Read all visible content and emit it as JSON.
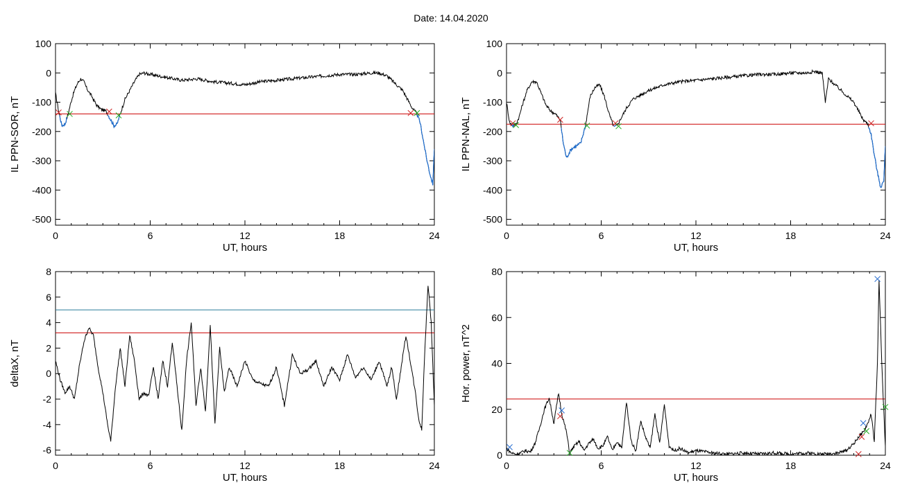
{
  "header": {
    "title": "Date:  14.04.2020"
  },
  "colors": {
    "curve": "#000000",
    "threshold_red": "#cc0000",
    "threshold_teal": "#2a7f9a",
    "active": "#1f6fd1",
    "mark_red": "#cc2222",
    "mark_green": "#22aa22",
    "mark_blue": "#2a6fd1"
  },
  "chart_data": [
    {
      "id": "ppn-sor",
      "type": "line",
      "title": "",
      "xlabel": "UT, hours",
      "ylabel": "IL PPN-SOR, nT",
      "xlim": [
        0,
        24
      ],
      "ylim": [
        -520,
        100
      ],
      "xticks": [
        0,
        6,
        12,
        18,
        24
      ],
      "yticks": [
        100,
        0,
        -100,
        -200,
        -300,
        -400,
        -500
      ],
      "threshold": -140,
      "series": [
        {
          "x": [
            0,
            0.2,
            0.4,
            0.6,
            0.8,
            1.0,
            1.2,
            1.4,
            1.6,
            1.8,
            2.0,
            2.3,
            2.6,
            2.9,
            3.2,
            3.5,
            3.7,
            3.9,
            4.1,
            4.4,
            4.7,
            5.0,
            5.3,
            5.6,
            6,
            7,
            8,
            9,
            10,
            11,
            12,
            13,
            14,
            15,
            16,
            17,
            18,
            19,
            20,
            20.5,
            21,
            21.5,
            22,
            22.3,
            22.6,
            22.9,
            23.1,
            23.3,
            23.5,
            23.7,
            23.9,
            24
          ],
          "y": [
            -70,
            -130,
            -180,
            -175,
            -140,
            -95,
            -60,
            -35,
            -20,
            -30,
            -55,
            -80,
            -110,
            -125,
            -130,
            -160,
            -180,
            -175,
            -140,
            -90,
            -60,
            -30,
            -5,
            0,
            -5,
            -15,
            -25,
            -20,
            -30,
            -35,
            -40,
            -30,
            -25,
            -20,
            -15,
            -10,
            -5,
            -5,
            0,
            0,
            -10,
            -35,
            -60,
            -90,
            -120,
            -140,
            -170,
            -230,
            -290,
            -340,
            -380,
            -260
          ]
        }
      ],
      "marks": [
        {
          "x": 0.2,
          "y": -135,
          "color": "red"
        },
        {
          "x": 0.9,
          "y": -140,
          "color": "green"
        },
        {
          "x": 3.4,
          "y": -132,
          "color": "red"
        },
        {
          "x": 4.0,
          "y": -145,
          "color": "green"
        },
        {
          "x": 22.5,
          "y": -137,
          "color": "red"
        },
        {
          "x": 22.9,
          "y": -137,
          "color": "green"
        }
      ]
    },
    {
      "id": "ppn-nal",
      "type": "line",
      "title": "",
      "xlabel": "UT, hours",
      "ylabel": "IL PPN-NAL, nT",
      "xlim": [
        0,
        24
      ],
      "ylim": [
        -520,
        100
      ],
      "xticks": [
        0,
        6,
        12,
        18,
        24
      ],
      "yticks": [
        100,
        0,
        -100,
        -200,
        -300,
        -400,
        -500
      ],
      "threshold": -175,
      "series": [
        {
          "x": [
            0,
            0.2,
            0.4,
            0.6,
            0.8,
            1.0,
            1.3,
            1.6,
            1.9,
            2.2,
            2.5,
            2.8,
            3.1,
            3.4,
            3.6,
            3.8,
            4.1,
            4.4,
            4.7,
            5.0,
            5.3,
            5.6,
            5.9,
            6.2,
            6.5,
            6.8,
            7.0,
            7.3,
            7.6,
            8,
            9,
            10,
            11,
            12,
            13,
            14,
            15,
            16,
            17,
            18,
            19,
            19.5,
            20,
            20.2,
            20.4,
            20.8,
            21.2,
            21.6,
            22,
            22.3,
            22.6,
            22.9,
            23.1,
            23.3,
            23.5,
            23.7,
            23.9,
            24
          ],
          "y": [
            -100,
            -170,
            -180,
            -175,
            -150,
            -110,
            -60,
            -30,
            -30,
            -70,
            -110,
            -130,
            -140,
            -160,
            -240,
            -290,
            -260,
            -250,
            -240,
            -180,
            -80,
            -50,
            -40,
            -80,
            -140,
            -185,
            -180,
            -150,
            -120,
            -90,
            -60,
            -40,
            -30,
            -25,
            -20,
            -15,
            -10,
            -5,
            -5,
            0,
            0,
            5,
            0,
            -100,
            -20,
            -40,
            -60,
            -80,
            -100,
            -130,
            -160,
            -175,
            -210,
            -280,
            -340,
            -390,
            -370,
            -250
          ]
        }
      ],
      "marks": [
        {
          "x": 0.4,
          "y": -172,
          "color": "red"
        },
        {
          "x": 0.6,
          "y": -178,
          "color": "green"
        },
        {
          "x": 3.4,
          "y": -160,
          "color": "red"
        },
        {
          "x": 5.1,
          "y": -180,
          "color": "green"
        },
        {
          "x": 6.9,
          "y": -172,
          "color": "red"
        },
        {
          "x": 7.1,
          "y": -182,
          "color": "green"
        },
        {
          "x": 23.1,
          "y": -172,
          "color": "red"
        }
      ]
    },
    {
      "id": "delta-x",
      "type": "line",
      "title": "",
      "xlabel": "UT, hours",
      "ylabel": "deltaX, nT",
      "xlim": [
        0,
        24
      ],
      "ylim": [
        -6.4,
        8
      ],
      "xticks": [
        0,
        6,
        12,
        18,
        24
      ],
      "yticks": [
        8,
        6,
        4,
        2,
        0,
        -2,
        -4,
        -6
      ],
      "thresholds": [
        5.0,
        3.2
      ],
      "series": [
        {
          "x": [
            0,
            0.3,
            0.6,
            0.9,
            1.2,
            1.5,
            1.8,
            2.1,
            2.4,
            2.7,
            3.0,
            3.3,
            3.5,
            3.8,
            4.1,
            4.4,
            4.7,
            5.0,
            5.3,
            5.6,
            5.9,
            6.2,
            6.5,
            6.8,
            7.1,
            7.4,
            7.7,
            8.0,
            8.3,
            8.6,
            8.9,
            9.2,
            9.5,
            9.8,
            10.1,
            10.4,
            10.7,
            11.0,
            11.5,
            12,
            12.5,
            13,
            13.5,
            14,
            14.5,
            15,
            15.5,
            16,
            16.5,
            17,
            17.5,
            18,
            18.5,
            19,
            19.5,
            20,
            20.5,
            21,
            21.3,
            21.6,
            21.9,
            22.2,
            22.5,
            22.8,
            23.0,
            23.2,
            23.4,
            23.6,
            23.8,
            24
          ],
          "y": [
            1,
            -0.5,
            -1.5,
            -1.0,
            -2.0,
            0.5,
            2.5,
            3.6,
            3.0,
            0.5,
            -1.5,
            -4.0,
            -5.3,
            -1.0,
            2.0,
            -1.0,
            3.0,
            1.0,
            -2.0,
            -1.5,
            -1.8,
            0.5,
            -2.0,
            1.0,
            -1.0,
            2.5,
            -1.0,
            -4.5,
            1.0,
            4.0,
            -2.5,
            0.5,
            -3.0,
            3.8,
            -4.0,
            2.0,
            -1.5,
            0.5,
            -1.0,
            1.0,
            -0.5,
            -0.8,
            -1.0,
            0.5,
            -2.5,
            1.5,
            0,
            0.3,
            1.0,
            -1.0,
            0.5,
            -0.5,
            1.5,
            -0.3,
            0.5,
            -0.5,
            1.0,
            -1.0,
            0.5,
            -2.0,
            0.5,
            3.0,
            0.8,
            -1.5,
            -3.5,
            -4.4,
            2.0,
            7.0,
            4.0,
            -2.5
          ]
        }
      ],
      "marks": []
    },
    {
      "id": "hor-power",
      "type": "line",
      "title": "",
      "xlabel": "UT, hours",
      "ylabel": "Hor. power, nT^2",
      "xlim": [
        0,
        24
      ],
      "ylim": [
        0,
        80
      ],
      "xticks": [
        0,
        6,
        12,
        18,
        24
      ],
      "yticks": [
        80,
        60,
        40,
        20,
        0
      ],
      "threshold": 24.5,
      "series": [
        {
          "x": [
            0,
            0.3,
            0.6,
            0.9,
            1.2,
            1.5,
            1.8,
            2.1,
            2.4,
            2.7,
            3.0,
            3.3,
            3.5,
            3.8,
            4.0,
            4.3,
            4.6,
            4.9,
            5.2,
            5.5,
            5.8,
            6.1,
            6.4,
            6.7,
            7.0,
            7.3,
            7.6,
            7.9,
            8.2,
            8.5,
            8.8,
            9.1,
            9.4,
            9.7,
            10.0,
            10.3,
            10.6,
            11.0,
            11.5,
            12,
            13,
            14,
            15,
            16,
            17,
            18,
            19,
            20,
            21,
            21.5,
            22,
            22.3,
            22.6,
            22.9,
            23.1,
            23.3,
            23.5,
            23.6,
            23.8,
            24
          ],
          "y": [
            3,
            1,
            0.5,
            1,
            2,
            1.5,
            5,
            12,
            20,
            25,
            14,
            27,
            18,
            10,
            1,
            4,
            6,
            2,
            5,
            7,
            3,
            4,
            8,
            2,
            6,
            3,
            23,
            6,
            2,
            15,
            8,
            3,
            18,
            5,
            22,
            4,
            2,
            3,
            1,
            2,
            1,
            0.5,
            1,
            0.5,
            1,
            0.5,
            1,
            0.5,
            1,
            2,
            5,
            8,
            10,
            14,
            18,
            6,
            40,
            76,
            35,
            4
          ]
        }
      ],
      "marks": [
        {
          "x": 0.2,
          "y": 3.5,
          "color": "blue"
        },
        {
          "x": 3.4,
          "y": 17,
          "color": "red"
        },
        {
          "x": 3.5,
          "y": 19.5,
          "color": "blue"
        },
        {
          "x": 4.0,
          "y": 1,
          "color": "green"
        },
        {
          "x": 22.3,
          "y": 0.5,
          "color": "red"
        },
        {
          "x": 22.5,
          "y": 8,
          "color": "red"
        },
        {
          "x": 22.6,
          "y": 14,
          "color": "blue"
        },
        {
          "x": 22.8,
          "y": 10.5,
          "color": "green"
        },
        {
          "x": 23.5,
          "y": 76.8,
          "color": "blue"
        },
        {
          "x": 24.0,
          "y": 21,
          "color": "green"
        }
      ]
    }
  ]
}
